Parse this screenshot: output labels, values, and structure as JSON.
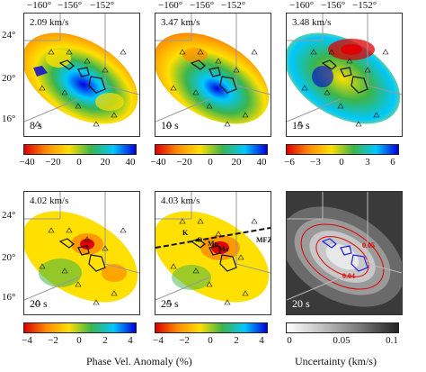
{
  "longitude_labels": [
    "−160°",
    "−156°",
    "−152°"
  ],
  "latitude_labels": [
    "24°",
    "20°",
    "16°"
  ],
  "panels": [
    {
      "reference_velocity": "2.09 km/s",
      "period": "8 s"
    },
    {
      "reference_velocity": "3.47 km/s",
      "period": "10 s"
    },
    {
      "reference_velocity": "3.48 km/s",
      "period": "15 s"
    },
    {
      "reference_velocity": "4.02 km/s",
      "period": "20 s"
    },
    {
      "reference_velocity": "4.03 km/s",
      "period": "25 s"
    },
    {
      "reference_velocity": "",
      "period": "20 s"
    }
  ],
  "annotations": {
    "fracture_zone": "MFZ",
    "islands": [
      "K",
      "O",
      "Mo",
      "Ma"
    ]
  },
  "colorbars": {
    "top_left_ticks": [
      "−40",
      "−20",
      "0",
      "20",
      "40"
    ],
    "top_middle_ticks": [
      "−40",
      "−20",
      "0",
      "20",
      "40"
    ],
    "top_right_ticks": [
      "−6",
      "−3",
      "0",
      "3",
      "6"
    ],
    "bottom_left_ticks": [
      "−4",
      "−2",
      "0",
      "2",
      "4"
    ],
    "bottom_middle_ticks": [
      "−4",
      "−2",
      "0",
      "2",
      "4"
    ],
    "uncertainty_ticks": [
      "0",
      "0.05",
      "0.1"
    ]
  },
  "captions": {
    "anomaly": "Phase Vel. Anomaly (%)",
    "uncertainty": "Uncertainty (km/s)"
  },
  "contour_labels": [
    "0.05",
    "0.04"
  ],
  "colors": {
    "red": "#e00000",
    "orange": "#ff8c00",
    "yellow": "#ffe000",
    "green": "#3cb44b",
    "cyan": "#00c8ff",
    "blue": "#0000e0"
  }
}
